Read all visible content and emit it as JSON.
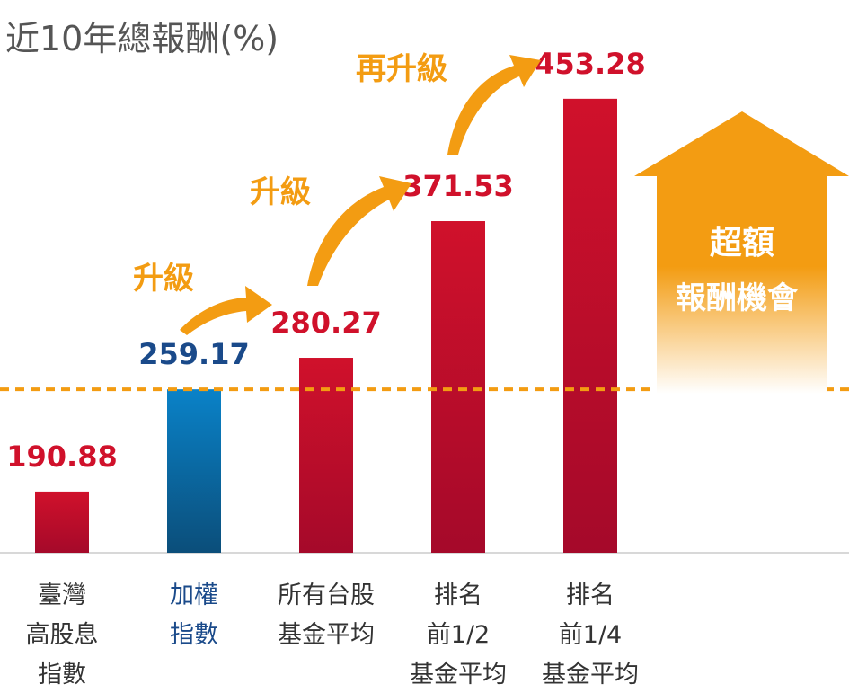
{
  "chart_data": {
    "type": "bar",
    "title": "近10年總報酬(%)",
    "categories": [
      [
        "臺灣",
        "高股息",
        "指數"
      ],
      [
        "加權",
        "指數"
      ],
      [
        "所有台股",
        "基金平均"
      ],
      [
        "排名",
        "前1/2",
        "基金平均"
      ],
      [
        "排名",
        "前1/4",
        "基金平均"
      ]
    ],
    "values": [
      190.88,
      259.17,
      280.27,
      371.53,
      453.28
    ],
    "value_labels": [
      "190.88",
      "259.17",
      "280.27",
      "371.53",
      "453.28"
    ],
    "bar_colors": [
      "red",
      "blue",
      "red",
      "red",
      "red"
    ],
    "ylim": [
      150,
      470
    ],
    "reference_line_value": 259.17,
    "upgrade_labels": [
      "升級",
      "升級",
      "再升級"
    ],
    "callout_lines": [
      "超額",
      "報酬機會"
    ],
    "colors": {
      "red": "#d0112b",
      "red_dark": "#a5092a",
      "blue": "#0a82c8",
      "blue_dark": "#0b4e7a",
      "blue_text": "#1a4a8a",
      "orange": "#f39c12",
      "reference_line": "#f39c12",
      "title": "#555555",
      "axis": "#cccccc",
      "category_text": "#333333"
    }
  }
}
